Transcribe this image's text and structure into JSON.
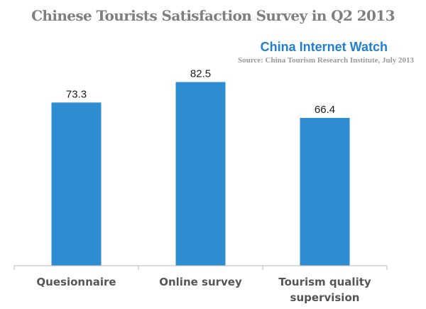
{
  "header": {
    "title": "Chinese Tourists Satisfaction Survey in Q2 2013",
    "brand": "China Internet Watch",
    "source": "Source: China Tourism Research Institute, July 2013"
  },
  "colors": {
    "bar": "#2e8cd0",
    "title": "#7f7f7f",
    "brand": "#1f7fd0"
  },
  "chart_data": {
    "type": "bar",
    "title": "Chinese Tourists Satisfaction Survey in Q2 2013",
    "categories": [
      "Quesionnaire",
      "Online survey",
      "Tourism quality supervision"
    ],
    "category_lines": [
      [
        "Quesionnaire"
      ],
      [
        "Online survey"
      ],
      [
        "Tourism quality",
        "supervision"
      ]
    ],
    "values": [
      73.3,
      82.5,
      66.4
    ],
    "value_labels": [
      "73.3",
      "82.5",
      "66.4"
    ],
    "xlabel": "",
    "ylabel": "",
    "ylim": [
      0,
      90
    ],
    "grid": false,
    "legend": "none"
  }
}
